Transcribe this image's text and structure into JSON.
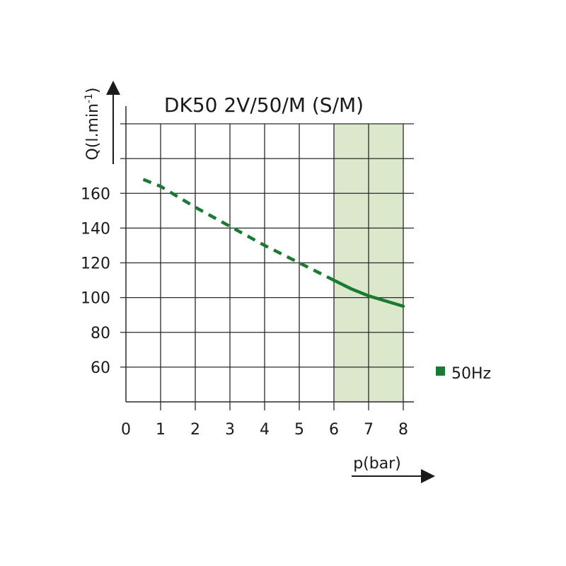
{
  "chart_data": {
    "type": "line",
    "title": "DK50 2V/50/M (S/M)",
    "xlabel": "p(bar)",
    "ylabel": "Q(l.min-1)",
    "ylabel_base": "Q(l.min",
    "ylabel_sup": "-1",
    "ylabel_close": ")",
    "xlim": [
      0,
      8
    ],
    "ylim": [
      40,
      200
    ],
    "x_ticks": [
      "0",
      "1",
      "2",
      "3",
      "4",
      "5",
      "6",
      "7",
      "8"
    ],
    "y_ticks": [
      "60",
      "80",
      "100",
      "120",
      "140",
      "160"
    ],
    "y_tick_values": [
      60,
      80,
      100,
      120,
      140,
      160
    ],
    "grid": true,
    "highlight_region": {
      "x_start": 6,
      "x_end": 8,
      "color": "#dbe8cc"
    },
    "legend": {
      "label": "50Hz",
      "placement": "right"
    },
    "series": [
      {
        "name": "50Hz",
        "color": "#1a7a34",
        "dashed_segment": {
          "x": [
            0.5,
            1,
            2,
            3,
            4,
            5,
            6
          ],
          "y": [
            168,
            164,
            152,
            141,
            130,
            120,
            110
          ]
        },
        "solid_segment": {
          "x": [
            6,
            6.5,
            7,
            7.5,
            8
          ],
          "y": [
            110,
            105,
            101,
            98,
            95
          ]
        }
      }
    ]
  }
}
